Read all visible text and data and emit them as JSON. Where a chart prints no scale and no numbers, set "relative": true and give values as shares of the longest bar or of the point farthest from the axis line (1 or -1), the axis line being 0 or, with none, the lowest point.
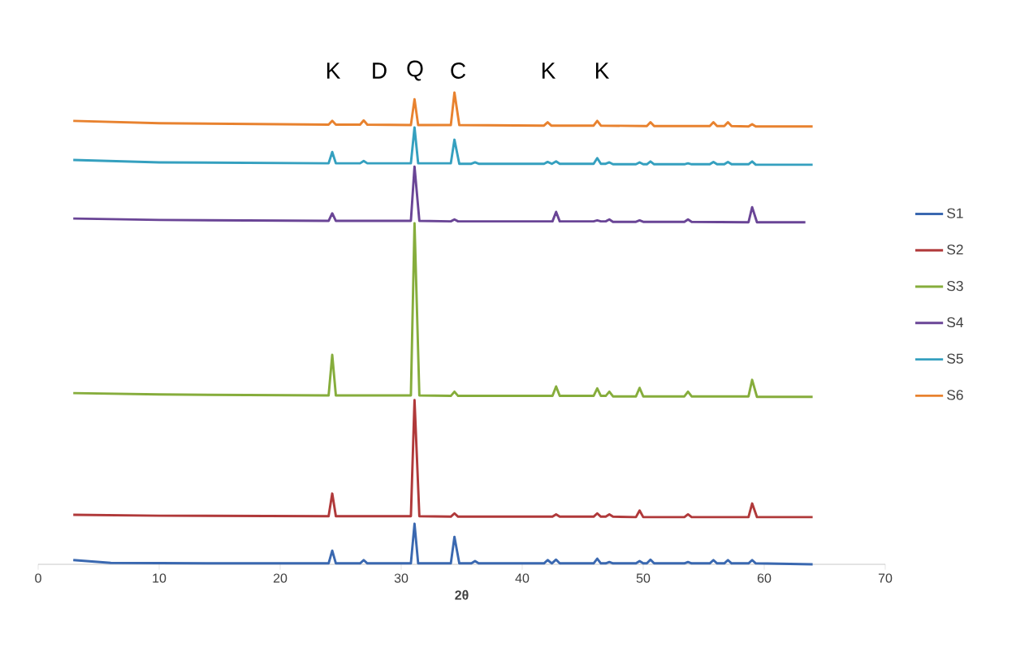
{
  "chart_data": {
    "type": "line",
    "relative": true,
    "xlabel": "2θ",
    "xlim": [
      0,
      70
    ],
    "xticks": [
      0,
      10,
      20,
      30,
      40,
      50,
      60,
      70
    ],
    "grid": false,
    "legend": "right",
    "marker": "none",
    "line_style": "solid",
    "annotations": [
      "K",
      "D",
      "Q",
      "C",
      "K",
      "K"
    ],
    "series": [
      {
        "name": "S1",
        "color": "#3a68b0",
        "x": [
          2.9,
          6,
          15,
          24.0,
          24.3,
          24.6,
          26.6,
          26.9,
          27.2,
          30.8,
          31.1,
          31.4,
          34.1,
          34.4,
          34.8,
          35.8,
          36.1,
          36.4,
          41.8,
          42.1,
          42.45,
          42.8,
          43.1,
          45.9,
          46.2,
          46.5,
          46.9,
          47.2,
          47.5,
          49.4,
          49.7,
          50.0,
          50.3,
          50.6,
          50.9,
          53.4,
          53.7,
          54.0,
          55.5,
          55.8,
          56.1,
          56.7,
          57.0,
          57.3,
          58.7,
          59.0,
          59.3,
          64
        ],
        "values": [
          0.009,
          0.003,
          0.002,
          0.002,
          0.029,
          0.002,
          0.002,
          0.009,
          0.002,
          0.002,
          0.086,
          0.002,
          0.002,
          0.058,
          0.002,
          0.002,
          0.007,
          0.002,
          0.002,
          0.009,
          0.002,
          0.01,
          0.002,
          0.002,
          0.012,
          0.002,
          0.002,
          0.005,
          0.002,
          0.002,
          0.007,
          0.002,
          0.002,
          0.01,
          0.002,
          0.002,
          0.005,
          0.002,
          0.002,
          0.009,
          0.002,
          0.002,
          0.009,
          0.002,
          0.002,
          0.009,
          0.002,
          0.0
        ]
      },
      {
        "name": "S2",
        "color": "#b0393a",
        "x": [
          2.9,
          10,
          24.0,
          24.3,
          24.6,
          30.8,
          31.1,
          31.5,
          34.1,
          34.4,
          34.7,
          42.5,
          42.8,
          43.1,
          45.9,
          46.2,
          46.5,
          46.9,
          47.2,
          47.5,
          49.4,
          49.7,
          50.0,
          53.4,
          53.7,
          54.0,
          58.7,
          59.0,
          59.4,
          64
        ],
        "values": [
          0.105,
          0.103,
          0.102,
          0.15,
          0.102,
          0.102,
          0.348,
          0.102,
          0.101,
          0.108,
          0.101,
          0.101,
          0.106,
          0.101,
          0.101,
          0.108,
          0.101,
          0.101,
          0.106,
          0.101,
          0.1,
          0.114,
          0.1,
          0.1,
          0.106,
          0.1,
          0.1,
          0.129,
          0.1,
          0.1
        ]
      },
      {
        "name": "S3",
        "color": "#86ad3c",
        "x": [
          2.9,
          10,
          24.0,
          24.3,
          24.6,
          30.8,
          31.1,
          31.5,
          34.1,
          34.4,
          34.7,
          42.5,
          42.8,
          43.1,
          45.9,
          46.2,
          46.5,
          46.9,
          47.2,
          47.5,
          49.4,
          49.7,
          50.0,
          53.4,
          53.7,
          54.0,
          58.7,
          59.0,
          59.4,
          64
        ],
        "values": [
          0.363,
          0.36,
          0.358,
          0.444,
          0.358,
          0.358,
          0.723,
          0.358,
          0.357,
          0.366,
          0.357,
          0.357,
          0.377,
          0.357,
          0.357,
          0.373,
          0.357,
          0.357,
          0.366,
          0.356,
          0.356,
          0.374,
          0.356,
          0.356,
          0.366,
          0.356,
          0.356,
          0.391,
          0.355,
          0.355
        ]
      },
      {
        "name": "S4",
        "color": "#6a4596",
        "x": [
          2.9,
          10,
          24.0,
          24.3,
          24.6,
          30.8,
          31.1,
          31.5,
          34.1,
          34.4,
          34.7,
          42.5,
          42.8,
          43.1,
          45.9,
          46.2,
          46.5,
          46.9,
          47.2,
          47.5,
          49.4,
          49.7,
          50.0,
          53.4,
          53.7,
          54.0,
          58.7,
          59.0,
          59.4,
          63.4
        ],
        "values": [
          0.733,
          0.73,
          0.728,
          0.744,
          0.728,
          0.728,
          0.843,
          0.728,
          0.727,
          0.731,
          0.727,
          0.727,
          0.747,
          0.727,
          0.727,
          0.729,
          0.727,
          0.727,
          0.731,
          0.726,
          0.726,
          0.729,
          0.726,
          0.726,
          0.731,
          0.726,
          0.725,
          0.757,
          0.725,
          0.725
        ]
      },
      {
        "name": "S5",
        "color": "#35a0bf",
        "x": [
          2.9,
          10,
          24.0,
          24.3,
          24.6,
          26.6,
          26.9,
          27.2,
          30.8,
          31.1,
          31.4,
          34.1,
          34.4,
          34.8,
          35.8,
          36.1,
          36.4,
          41.8,
          42.1,
          42.45,
          42.8,
          43.1,
          45.9,
          46.2,
          46.5,
          46.9,
          47.2,
          47.5,
          49.4,
          49.7,
          50.0,
          50.3,
          50.6,
          50.9,
          53.4,
          53.7,
          54.0,
          55.5,
          55.8,
          56.1,
          56.7,
          57.0,
          57.3,
          58.7,
          59.0,
          59.3,
          64
        ],
        "values": [
          0.857,
          0.852,
          0.85,
          0.874,
          0.85,
          0.85,
          0.855,
          0.85,
          0.85,
          0.926,
          0.85,
          0.85,
          0.9,
          0.849,
          0.849,
          0.852,
          0.849,
          0.849,
          0.853,
          0.849,
          0.854,
          0.849,
          0.849,
          0.861,
          0.849,
          0.849,
          0.852,
          0.848,
          0.848,
          0.852,
          0.848,
          0.848,
          0.854,
          0.848,
          0.848,
          0.85,
          0.848,
          0.848,
          0.853,
          0.848,
          0.848,
          0.853,
          0.848,
          0.848,
          0.854,
          0.847,
          0.847
        ]
      },
      {
        "name": "S6",
        "color": "#e8822f",
        "x": [
          2.9,
          10,
          24.0,
          24.3,
          24.6,
          26.6,
          26.9,
          27.2,
          30.8,
          31.1,
          31.4,
          34.1,
          34.4,
          34.8,
          41.8,
          42.1,
          42.4,
          45.9,
          46.2,
          46.5,
          50.3,
          50.6,
          50.9,
          55.5,
          55.8,
          56.1,
          56.7,
          57.0,
          57.3,
          58.7,
          59.0,
          59.3,
          64
        ],
        "values": [
          0.94,
          0.935,
          0.932,
          0.94,
          0.932,
          0.932,
          0.941,
          0.932,
          0.931,
          0.986,
          0.931,
          0.931,
          1,
          0.931,
          0.93,
          0.937,
          0.93,
          0.93,
          0.94,
          0.93,
          0.929,
          0.937,
          0.929,
          0.929,
          0.937,
          0.929,
          0.929,
          0.937,
          0.929,
          0.928,
          0.933,
          0.928,
          0.928
        ]
      }
    ]
  }
}
